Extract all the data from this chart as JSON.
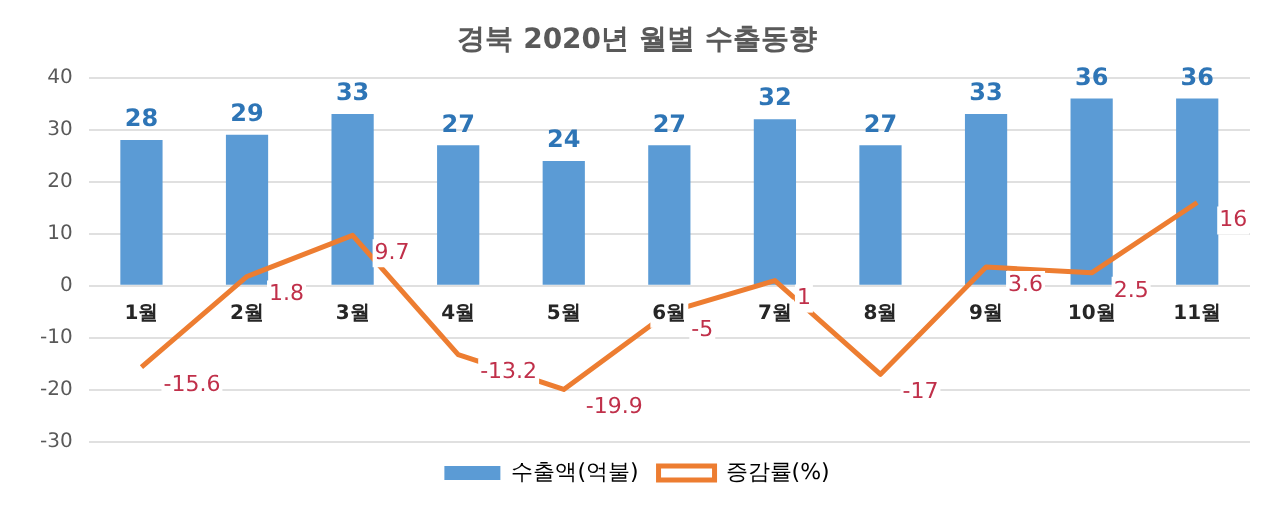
{
  "chart_data": {
    "type": "bar",
    "title": "경북 2020년 월별 수출동향",
    "categories": [
      "1월",
      "2월",
      "3월",
      "4월",
      "5월",
      "6월",
      "7월",
      "8월",
      "9월",
      "10월",
      "11월"
    ],
    "series": [
      {
        "name": "수출액(억불)",
        "color": "#5b9bd5",
        "values": [
          28,
          29,
          33,
          27,
          24,
          27,
          32,
          27,
          33,
          36,
          36
        ]
      },
      {
        "name": "증감률(%)",
        "type": "line",
        "color": "#ed7d31",
        "values": [
          -15.6,
          1.8,
          9.7,
          -13.2,
          -19.9,
          -5,
          1,
          -17,
          3.6,
          2.5,
          16
        ]
      }
    ],
    "ylim": [
      -30,
      40
    ],
    "yticks": [
      -30,
      -20,
      -10,
      0,
      10,
      20,
      30,
      40
    ],
    "grid": "y",
    "legend": "bottom",
    "data_labels": true,
    "marker": "none"
  }
}
